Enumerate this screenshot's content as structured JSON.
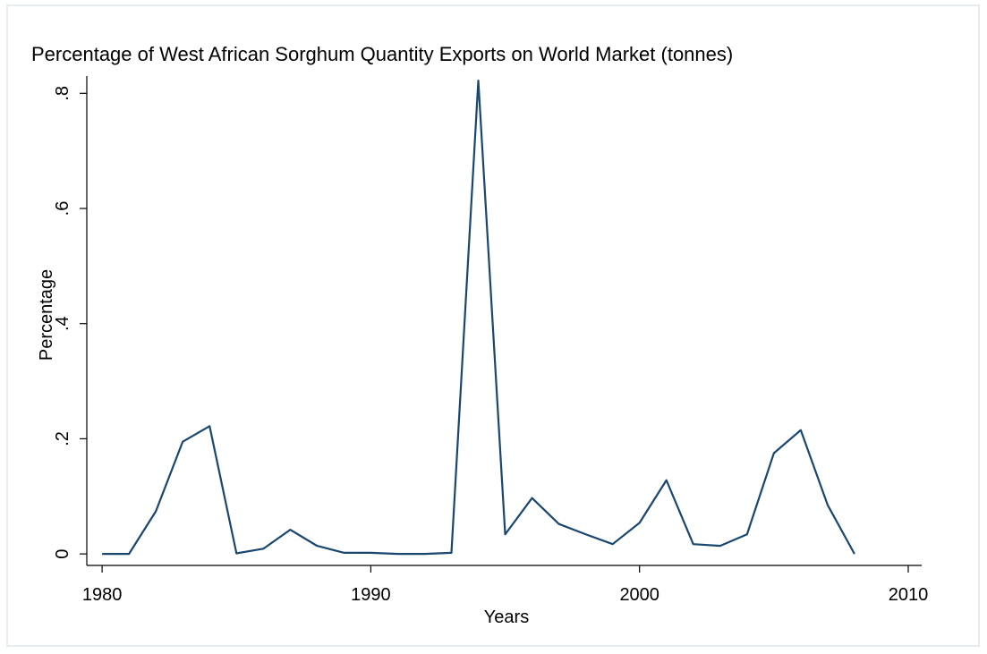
{
  "chart_data": {
    "type": "line",
    "title": "Percentage of West African Sorghum Quantity  Exports on World Market (tonnes)",
    "x_label": "Years",
    "y_label": "Percentage",
    "x": [
      1980,
      1981,
      1982,
      1983,
      1984,
      1985,
      1986,
      1987,
      1988,
      1989,
      1990,
      1991,
      1992,
      1993,
      1994,
      1995,
      1996,
      1997,
      1998,
      1999,
      2000,
      2001,
      2002,
      2003,
      2004,
      2005,
      2006,
      2007,
      2008
    ],
    "values": [
      0,
      0,
      0.074,
      0.195,
      0.222,
      0.001,
      0.009,
      0.042,
      0.014,
      0.002,
      0.002,
      0,
      0,
      0.002,
      0.822,
      0.034,
      0.097,
      0.052,
      0.034,
      0.017,
      0.054,
      0.128,
      0.017,
      0.014,
      0.034,
      0.175,
      0.215,
      0.085,
      0
    ],
    "color": "#1a476f",
    "xlim": [
      1979.43,
      2010.5
    ],
    "ylim": [
      -0.02,
      0.83
    ],
    "xticks": [
      1980,
      1990,
      2000,
      2010
    ],
    "yticks": [
      0,
      {
        "value": 0.2,
        "label": ".2"
      },
      {
        "value": 0.4,
        "label": ".4"
      },
      {
        "value": 0.6,
        "label": ".6"
      },
      {
        "value": 0.8,
        "label": ".8"
      }
    ]
  }
}
